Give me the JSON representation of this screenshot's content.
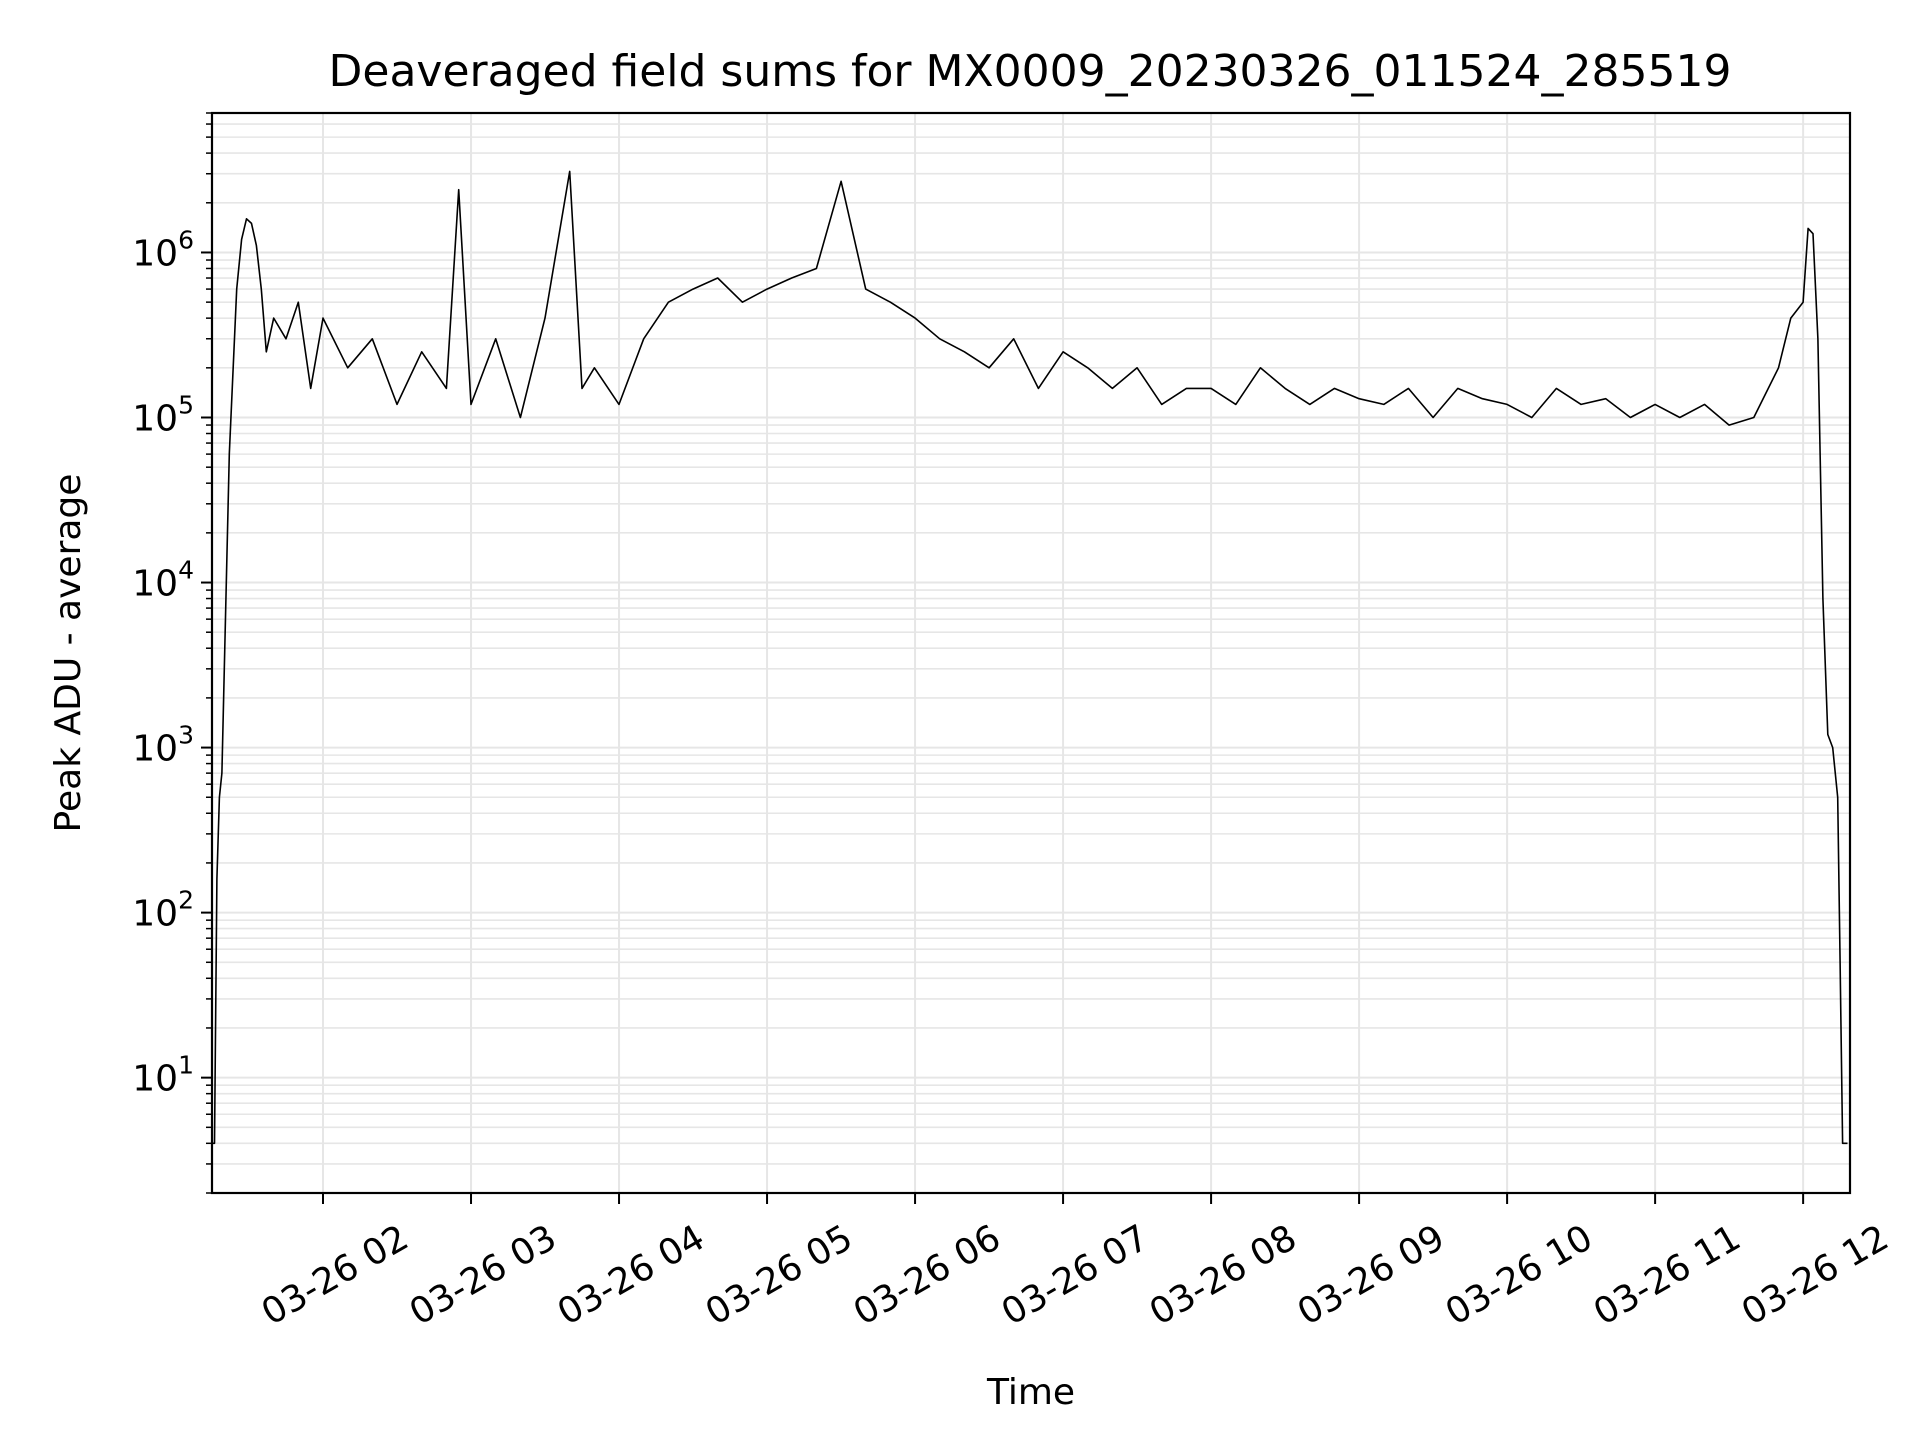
{
  "chart_data": {
    "type": "line",
    "title": "Deaveraged field sums for MX0009_20230326_011524_285519",
    "xlabel": "Time",
    "ylabel": "Peak ADU - average",
    "yscale": "log",
    "grid": "major and minor",
    "line_color": "#000000",
    "grid_color": "#e6e6e6",
    "xlim": [
      "2023-03-26 01:15",
      "2023-03-26 12:19"
    ],
    "ylim": [
      2,
      7000000
    ],
    "x_ticks": [
      {
        "value": "2023-03-26 02:00",
        "label": "03-26 02"
      },
      {
        "value": "2023-03-26 03:00",
        "label": "03-26 03"
      },
      {
        "value": "2023-03-26 04:00",
        "label": "03-26 04"
      },
      {
        "value": "2023-03-26 05:00",
        "label": "03-26 05"
      },
      {
        "value": "2023-03-26 06:00",
        "label": "03-26 06"
      },
      {
        "value": "2023-03-26 07:00",
        "label": "03-26 07"
      },
      {
        "value": "2023-03-26 08:00",
        "label": "03-26 08"
      },
      {
        "value": "2023-03-26 09:00",
        "label": "03-26 09"
      },
      {
        "value": "2023-03-26 10:00",
        "label": "03-26 10"
      },
      {
        "value": "2023-03-26 11:00",
        "label": "03-26 11"
      },
      {
        "value": "2023-03-26 12:00",
        "label": "03-26 12"
      }
    ],
    "y_ticks": [
      {
        "value": 10,
        "base": "10",
        "exp": "1"
      },
      {
        "value": 100,
        "base": "10",
        "exp": "2"
      },
      {
        "value": 1000,
        "base": "10",
        "exp": "3"
      },
      {
        "value": 10000,
        "base": "10",
        "exp": "4"
      },
      {
        "value": 100000,
        "base": "10",
        "exp": "5"
      },
      {
        "value": 1000000,
        "base": "10",
        "exp": "6"
      }
    ],
    "series": [
      {
        "x": [
          "2023-03-26 01:15",
          "2023-03-26 01:16",
          "2023-03-26 01:17",
          "2023-03-26 01:18",
          "2023-03-26 01:19",
          "2023-03-26 01:20",
          "2023-03-26 01:22",
          "2023-03-26 01:25",
          "2023-03-26 01:27",
          "2023-03-26 01:29",
          "2023-03-26 01:31",
          "2023-03-26 01:33",
          "2023-03-26 01:35",
          "2023-03-26 01:37",
          "2023-03-26 01:40",
          "2023-03-26 01:45",
          "2023-03-26 01:50",
          "2023-03-26 01:55",
          "2023-03-26 02:00",
          "2023-03-26 02:10",
          "2023-03-26 02:20",
          "2023-03-26 02:30",
          "2023-03-26 02:40",
          "2023-03-26 02:50",
          "2023-03-26 02:55",
          "2023-03-26 03:00",
          "2023-03-26 03:10",
          "2023-03-26 03:20",
          "2023-03-26 03:30",
          "2023-03-26 03:40",
          "2023-03-26 03:45",
          "2023-03-26 03:50",
          "2023-03-26 04:00",
          "2023-03-26 04:10",
          "2023-03-26 04:20",
          "2023-03-26 04:30",
          "2023-03-26 04:40",
          "2023-03-26 04:50",
          "2023-03-26 05:00",
          "2023-03-26 05:10",
          "2023-03-26 05:20",
          "2023-03-26 05:30",
          "2023-03-26 05:40",
          "2023-03-26 05:50",
          "2023-03-26 06:00",
          "2023-03-26 06:10",
          "2023-03-26 06:20",
          "2023-03-26 06:30",
          "2023-03-26 06:40",
          "2023-03-26 06:50",
          "2023-03-26 07:00",
          "2023-03-26 07:10",
          "2023-03-26 07:20",
          "2023-03-26 07:30",
          "2023-03-26 07:40",
          "2023-03-26 07:50",
          "2023-03-26 08:00",
          "2023-03-26 08:10",
          "2023-03-26 08:20",
          "2023-03-26 08:30",
          "2023-03-26 08:40",
          "2023-03-26 08:50",
          "2023-03-26 09:00",
          "2023-03-26 09:10",
          "2023-03-26 09:20",
          "2023-03-26 09:30",
          "2023-03-26 09:40",
          "2023-03-26 09:50",
          "2023-03-26 10:00",
          "2023-03-26 10:10",
          "2023-03-26 10:20",
          "2023-03-26 10:30",
          "2023-03-26 10:40",
          "2023-03-26 10:50",
          "2023-03-26 11:00",
          "2023-03-26 11:10",
          "2023-03-26 11:20",
          "2023-03-26 11:30",
          "2023-03-26 11:40",
          "2023-03-26 11:50",
          "2023-03-26 11:55",
          "2023-03-26 12:00",
          "2023-03-26 12:02",
          "2023-03-26 12:04",
          "2023-03-26 12:06",
          "2023-03-26 12:08",
          "2023-03-26 12:10",
          "2023-03-26 12:12",
          "2023-03-26 12:14",
          "2023-03-26 12:15",
          "2023-03-26 12:16",
          "2023-03-26 12:17",
          "2023-03-26 12:18"
        ],
        "y": [
          4,
          4,
          160,
          500,
          700,
          3000,
          60000,
          600000,
          1200000,
          1600000,
          1500000,
          1100000,
          600000,
          250000,
          400000,
          300000,
          500000,
          150000,
          400000,
          200000,
          300000,
          120000,
          250000,
          150000,
          2400000,
          120000,
          300000,
          100000,
          400000,
          3100000,
          150000,
          200000,
          120000,
          300000,
          500000,
          600000,
          700000,
          500000,
          600000,
          700000,
          800000,
          2700000,
          600000,
          500000,
          400000,
          300000,
          250000,
          200000,
          300000,
          150000,
          250000,
          200000,
          150000,
          200000,
          120000,
          150000,
          150000,
          120000,
          200000,
          150000,
          120000,
          150000,
          130000,
          120000,
          150000,
          100000,
          150000,
          130000,
          120000,
          100000,
          150000,
          120000,
          130000,
          100000,
          120000,
          100000,
          120000,
          90000,
          100000,
          200000,
          400000,
          500000,
          1400000,
          1300000,
          300000,
          8000,
          1200,
          1000,
          500,
          50,
          4,
          4,
          4
        ]
      }
    ]
  }
}
